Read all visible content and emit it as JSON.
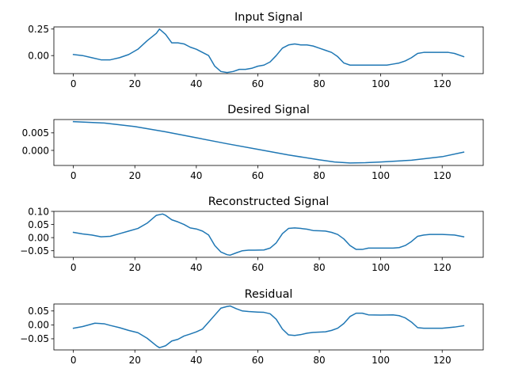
{
  "figure": {
    "background": "#ffffff",
    "line_color": "#1f77b4"
  },
  "chart_data": [
    {
      "type": "line",
      "title": "Input Signal",
      "xlabel": "",
      "ylabel": "",
      "xlim": [
        -6.35,
        133.35
      ],
      "ylim": [
        -0.17,
        0.27
      ],
      "xticks": [
        0,
        20,
        40,
        60,
        80,
        100,
        120
      ],
      "xtick_labels": [
        "0",
        "20",
        "40",
        "60",
        "80",
        "100",
        "120"
      ],
      "yticks": [
        0.0,
        0.25
      ],
      "ytick_labels": [
        "0.00",
        "0.25"
      ],
      "grid": false,
      "series": [
        {
          "x": [
            0,
            3,
            6,
            9,
            12,
            15,
            18,
            21,
            24,
            27,
            28,
            30,
            32,
            34,
            36,
            38,
            40,
            42,
            44,
            46,
            48,
            50,
            52,
            54,
            56,
            58,
            60,
            62,
            64,
            66,
            68,
            70,
            72,
            74,
            76,
            78,
            80,
            82,
            84,
            86,
            88,
            90,
            92,
            94,
            96,
            98,
            100,
            102,
            104,
            106,
            108,
            110,
            112,
            114,
            116,
            118,
            120,
            122,
            124,
            127
          ],
          "y": [
            0.01,
            0.0,
            -0.02,
            -0.04,
            -0.04,
            -0.02,
            0.01,
            0.06,
            0.14,
            0.21,
            0.25,
            0.2,
            0.12,
            0.12,
            0.11,
            0.08,
            0.06,
            0.03,
            0.0,
            -0.1,
            -0.15,
            -0.16,
            -0.15,
            -0.13,
            -0.13,
            -0.12,
            -0.1,
            -0.09,
            -0.06,
            0.0,
            0.07,
            0.1,
            0.11,
            0.1,
            0.1,
            0.09,
            0.07,
            0.05,
            0.03,
            -0.01,
            -0.07,
            -0.09,
            -0.09,
            -0.09,
            -0.09,
            -0.09,
            -0.09,
            -0.09,
            -0.08,
            -0.07,
            -0.05,
            -0.02,
            0.02,
            0.03,
            0.03,
            0.03,
            0.03,
            0.03,
            0.02,
            -0.01
          ]
        }
      ]
    },
    {
      "type": "line",
      "title": "Desired Signal",
      "xlabel": "",
      "ylabel": "",
      "xlim": [
        -6.35,
        133.35
      ],
      "ylim": [
        -0.0043,
        0.0088
      ],
      "xticks": [
        0,
        20,
        40,
        60,
        80,
        100,
        120
      ],
      "xtick_labels": [
        "0",
        "20",
        "40",
        "60",
        "80",
        "100",
        "120"
      ],
      "yticks": [
        0.0,
        0.005
      ],
      "ytick_labels": [
        "0.000",
        "0.005"
      ],
      "grid": false,
      "series": [
        {
          "x": [
            0,
            10,
            20,
            30,
            40,
            50,
            60,
            70,
            80,
            85,
            90,
            95,
            100,
            110,
            120,
            127
          ],
          "y": [
            0.0082,
            0.0078,
            0.0068,
            0.0053,
            0.0036,
            0.0019,
            0.0003,
            -0.0013,
            -0.0027,
            -0.0033,
            -0.0036,
            -0.0035,
            -0.0033,
            -0.0028,
            -0.0018,
            -0.0005
          ]
        }
      ]
    },
    {
      "type": "line",
      "title": "Reconstructed Signal",
      "xlabel": "",
      "ylabel": "",
      "xlim": [
        -6.35,
        133.35
      ],
      "ylim": [
        -0.075,
        0.1
      ],
      "xticks": [
        0,
        20,
        40,
        60,
        80,
        100,
        120
      ],
      "xtick_labels": [
        "0",
        "20",
        "40",
        "60",
        "80",
        "100",
        "120"
      ],
      "yticks": [
        -0.05,
        0.0,
        0.05,
        0.1
      ],
      "ytick_labels": [
        "−0.05",
        "0.00",
        "0.05",
        "0.10"
      ],
      "grid": false,
      "series": [
        {
          "x": [
            0,
            3,
            6,
            9,
            12,
            15,
            18,
            21,
            24,
            27,
            29,
            30,
            32,
            34,
            36,
            38,
            40,
            42,
            44,
            46,
            48,
            50,
            51,
            53,
            55,
            57,
            59,
            62,
            64,
            66,
            68,
            70,
            72,
            74,
            76,
            78,
            80,
            82,
            84,
            86,
            88,
            90,
            92,
            94,
            96,
            100,
            104,
            106,
            108,
            110,
            112,
            114,
            116,
            120,
            124,
            127
          ],
          "y": [
            0.02,
            0.014,
            0.01,
            0.003,
            0.005,
            0.015,
            0.025,
            0.035,
            0.055,
            0.085,
            0.09,
            0.085,
            0.068,
            0.06,
            0.05,
            0.037,
            0.033,
            0.025,
            0.01,
            -0.03,
            -0.055,
            -0.065,
            -0.067,
            -0.058,
            -0.05,
            -0.048,
            -0.048,
            -0.047,
            -0.04,
            -0.02,
            0.015,
            0.035,
            0.037,
            0.035,
            0.032,
            0.027,
            0.026,
            0.025,
            0.02,
            0.012,
            -0.005,
            -0.03,
            -0.045,
            -0.045,
            -0.04,
            -0.04,
            -0.04,
            -0.038,
            -0.03,
            -0.015,
            0.005,
            0.01,
            0.012,
            0.012,
            0.01,
            0.003
          ]
        }
      ]
    },
    {
      "type": "line",
      "title": "Residual",
      "xlabel": "",
      "ylabel": "",
      "xlim": [
        -6.35,
        133.35
      ],
      "ylim": [
        -0.09,
        0.075
      ],
      "xticks": [
        0,
        20,
        40,
        60,
        80,
        100,
        120
      ],
      "xtick_labels": [
        "0",
        "20",
        "40",
        "60",
        "80",
        "100",
        "120"
      ],
      "yticks": [
        -0.05,
        0.0,
        0.05
      ],
      "ytick_labels": [
        "−0.05",
        "0.00",
        "0.05"
      ],
      "grid": false,
      "series": [
        {
          "x": [
            0,
            3,
            5,
            7,
            10,
            12,
            15,
            18,
            21,
            24,
            27,
            28,
            30,
            32,
            34,
            36,
            38,
            40,
            42,
            44,
            46,
            48,
            50,
            51,
            53,
            55,
            57,
            60,
            62,
            64,
            66,
            68,
            70,
            72,
            74,
            76,
            78,
            80,
            82,
            84,
            86,
            88,
            90,
            92,
            94,
            96,
            100,
            104,
            106,
            108,
            110,
            112,
            114,
            116,
            120,
            124,
            127
          ],
          "y": [
            -0.012,
            -0.006,
            0.0,
            0.006,
            0.004,
            -0.002,
            -0.01,
            -0.02,
            -0.028,
            -0.048,
            -0.075,
            -0.082,
            -0.075,
            -0.058,
            -0.052,
            -0.04,
            -0.033,
            -0.025,
            -0.015,
            0.01,
            0.035,
            0.06,
            0.066,
            0.068,
            0.058,
            0.05,
            0.048,
            0.046,
            0.045,
            0.04,
            0.02,
            -0.015,
            -0.036,
            -0.038,
            -0.035,
            -0.03,
            -0.027,
            -0.026,
            -0.025,
            -0.02,
            -0.012,
            0.005,
            0.03,
            0.042,
            0.042,
            0.036,
            0.035,
            0.036,
            0.033,
            0.025,
            0.01,
            -0.01,
            -0.012,
            -0.012,
            -0.012,
            -0.008,
            -0.003
          ]
        }
      ]
    }
  ]
}
